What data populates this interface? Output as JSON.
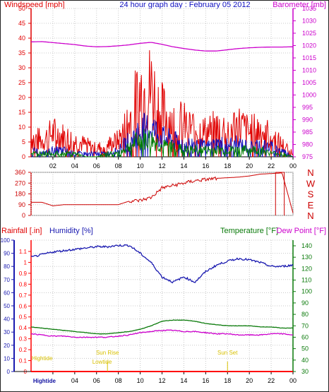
{
  "page": {
    "title": "24 hour graph day : February 05 2012"
  },
  "colors": {
    "wind": "#e00000",
    "wind_avg": "#1010c0",
    "wind_alt": "#008000",
    "barometer": "#cc00cc",
    "direction": "#cc0000",
    "humidity": "#1a1ab0",
    "temperature": "#0a7a0a",
    "dewpoint": "#cc00cc",
    "rainfall": "#ff0000",
    "annotation": "#d8c000",
    "grid": "#c8c8c8"
  },
  "chart_data": [
    {
      "type": "line",
      "title": "24 hour graph day : February 05 2012",
      "ylabel": "Windspeed [mph]",
      "y2label": "Barometer [mb]",
      "ylim": [
        0,
        50
      ],
      "y2lim": [
        975,
        1035
      ],
      "yticks": [
        "0",
        "5",
        "10",
        "15",
        "20",
        "25",
        "30",
        "35",
        "40",
        "45",
        "50"
      ],
      "y2ticks": [
        "975",
        "980",
        "985",
        "990",
        "995",
        "1000",
        "1005",
        "1010",
        "1015",
        "1020",
        "1025",
        "1030",
        "1035"
      ],
      "xticks": [
        "02",
        "04",
        "06",
        "08",
        "10",
        "12",
        "14",
        "16",
        "18",
        "20",
        "22",
        "00"
      ],
      "x_hours": [
        0,
        1,
        2,
        3,
        4,
        5,
        6,
        7,
        8,
        9,
        10,
        11,
        12,
        13,
        14,
        15,
        16,
        17,
        18,
        19,
        20,
        21,
        22,
        23,
        24
      ],
      "series": [
        {
          "key": "wind",
          "values": [
            5,
            4,
            6,
            5,
            4,
            3,
            2,
            3,
            4,
            9,
            16,
            17,
            11,
            9,
            8,
            7,
            6,
            7,
            7,
            8,
            6,
            7,
            5,
            3,
            1
          ]
        },
        {
          "key": "wind_avg",
          "values": [
            2,
            1,
            2,
            2,
            1,
            1,
            1,
            1,
            2,
            5,
            8,
            9,
            6,
            5,
            4,
            4,
            3,
            4,
            4,
            4,
            3,
            4,
            3,
            2,
            0
          ]
        },
        {
          "key": "wind_alt",
          "values": [
            1,
            1,
            1,
            1,
            1,
            0,
            0,
            1,
            1,
            3,
            5,
            5,
            3,
            3,
            2,
            2,
            2,
            2,
            2,
            2,
            2,
            2,
            1,
            1,
            0
          ]
        },
        {
          "key": "barometer",
          "values": [
            1021.5,
            1021.6,
            1021.2,
            1020.8,
            1020.4,
            1019.8,
            1019.5,
            1019.6,
            1019.9,
            1020.3,
            1020.9,
            1021.3,
            1020.5,
            1019.5,
            1018.8,
            1018.2,
            1017.8,
            1017.8,
            1018.3,
            1018.8,
            1019.1,
            1019.3,
            1019.4,
            1019.4,
            1019.5
          ]
        }
      ]
    },
    {
      "type": "line",
      "ylabel_right": [
        "N",
        "W",
        "S",
        "E",
        "N"
      ],
      "ylim": [
        0,
        360
      ],
      "yticks": [
        "0",
        "90",
        "180",
        "270",
        "360"
      ],
      "series": [
        {
          "key": "direction",
          "values": [
            110,
            110,
            80,
            90,
            90,
            90,
            90,
            90,
            90,
            120,
            125,
            150,
            230,
            250,
            270,
            290,
            300,
            310,
            315,
            320,
            330,
            345,
            350,
            355,
            20
          ]
        }
      ]
    },
    {
      "type": "line",
      "ylabel": "Humidity [%]",
      "rainfall_label": "Rainfall [.in]",
      "temp_label": "Temperature [°F]",
      "dew_label": "Dew Point [°F]",
      "humidity_ticks": [
        "0",
        "10",
        "20",
        "30",
        "40",
        "50",
        "60",
        "70",
        "80",
        "90",
        "100"
      ],
      "rain_ticks": [
        "0",
        "0.1",
        "0.2",
        "0.3",
        "0.4",
        "0.5",
        "0.6",
        "0.7",
        "0.8",
        "0.9",
        "1",
        "1.1"
      ],
      "temp_ticks": [
        "30",
        "40",
        "50",
        "60",
        "70",
        "80",
        "90",
        "100",
        "110",
        "120",
        "130",
        "140"
      ],
      "xticks": [
        "Hightide",
        "04",
        "06",
        "08",
        "10",
        "12",
        "14",
        "16",
        "18",
        "20",
        "22",
        "00"
      ],
      "annotations": [
        {
          "label": "Hightide",
          "hour": 0.5
        },
        {
          "label": "Sun Rise",
          "hour": 7.0
        },
        {
          "label": "Lowtide",
          "hour": 6.5
        },
        {
          "label": "Sun Set",
          "hour": 18.0
        }
      ],
      "series": [
        {
          "key": "humidity",
          "values": [
            87,
            89,
            91,
            92,
            93,
            94,
            95,
            95,
            96,
            96,
            90,
            83,
            72,
            68,
            72,
            68,
            76,
            81,
            84,
            86,
            85,
            83,
            80,
            80,
            81
          ]
        },
        {
          "key": "temperature",
          "values": [
            69,
            68,
            67,
            66,
            65,
            64,
            63,
            63,
            64,
            65,
            67,
            70,
            74,
            75,
            75,
            74,
            72,
            71,
            70,
            70,
            70,
            69,
            69,
            68,
            68
          ]
        },
        {
          "key": "dewpoint",
          "values": [
            63,
            62,
            61,
            61,
            60,
            60,
            60,
            60,
            61,
            62,
            64,
            65,
            66,
            66,
            65,
            65,
            64,
            63,
            63,
            62,
            62,
            62,
            63,
            63,
            62
          ]
        },
        {
          "key": "rainfall",
          "values": [
            0,
            0,
            0,
            0,
            0,
            0,
            0,
            0,
            0,
            0,
            0,
            0,
            0,
            0,
            0,
            0,
            0,
            0,
            0,
            0,
            0,
            0,
            0,
            0,
            0
          ]
        }
      ]
    }
  ]
}
